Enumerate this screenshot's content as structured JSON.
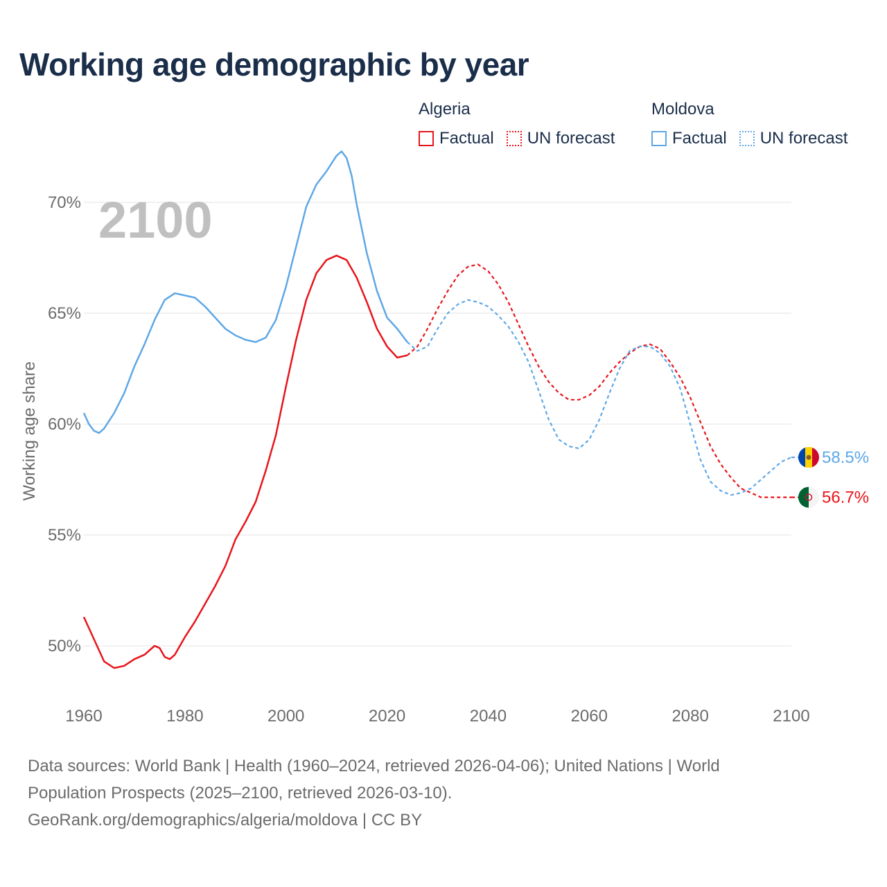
{
  "header": {
    "title": "Working age demographic by year"
  },
  "legend": {
    "groups": [
      {
        "country": "Algeria",
        "factual_label": "Factual",
        "forecast_label": "UN forecast",
        "color": "#e8141b"
      },
      {
        "country": "Moldova",
        "factual_label": "Factual",
        "forecast_label": "UN forecast",
        "color": "#5ea7e6"
      }
    ]
  },
  "chart_data": {
    "type": "line",
    "title": "Working age demographic by year",
    "year_overlay": "2100",
    "xlabel": "",
    "ylabel": "Working age share",
    "xlim": [
      1960,
      2100
    ],
    "ylim": [
      47.5,
      72.5
    ],
    "x_ticks": [
      1960,
      1980,
      2000,
      2020,
      2040,
      2060,
      2080,
      2100
    ],
    "y_ticks": [
      50,
      55,
      60,
      65,
      70
    ],
    "y_tick_labels": [
      "50%",
      "55%",
      "60%",
      "65%",
      "70%"
    ],
    "grid": true,
    "forecast_start": 2025,
    "series": [
      {
        "name": "Algeria",
        "color": "#e8141b",
        "end_label": "56.7%",
        "flag": "algeria-flag",
        "x": [
          1960,
          1962,
          1964,
          1966,
          1968,
          1970,
          1972,
          1974,
          1975,
          1976,
          1977,
          1978,
          1980,
          1982,
          1984,
          1986,
          1988,
          1990,
          1992,
          1994,
          1996,
          1998,
          2000,
          2002,
          2004,
          2006,
          2008,
          2010,
          2012,
          2014,
          2016,
          2018,
          2020,
          2022,
          2024,
          2026,
          2028,
          2030,
          2032,
          2034,
          2036,
          2038,
          2040,
          2042,
          2044,
          2046,
          2048,
          2050,
          2052,
          2054,
          2056,
          2058,
          2060,
          2062,
          2064,
          2066,
          2068,
          2070,
          2072,
          2074,
          2076,
          2078,
          2080,
          2082,
          2084,
          2086,
          2088,
          2090,
          2092,
          2094,
          2096,
          2098,
          2100
        ],
        "values": [
          51.3,
          50.3,
          49.3,
          49.0,
          49.1,
          49.4,
          49.6,
          50.0,
          49.9,
          49.5,
          49.4,
          49.6,
          50.4,
          51.1,
          51.9,
          52.7,
          53.6,
          54.8,
          55.6,
          56.5,
          57.9,
          59.5,
          61.7,
          63.8,
          65.6,
          66.8,
          67.4,
          67.6,
          67.4,
          66.6,
          65.5,
          64.3,
          63.5,
          63.0,
          63.1,
          63.5,
          64.3,
          65.2,
          66.0,
          66.7,
          67.1,
          67.2,
          66.9,
          66.3,
          65.5,
          64.5,
          63.5,
          62.6,
          61.9,
          61.4,
          61.1,
          61.1,
          61.3,
          61.7,
          62.3,
          62.8,
          63.2,
          63.5,
          63.6,
          63.4,
          62.8,
          62.1,
          61.2,
          60.1,
          59.0,
          58.2,
          57.6,
          57.1,
          56.9,
          56.7,
          56.7,
          56.7,
          56.7
        ]
      },
      {
        "name": "Moldova",
        "color": "#5ea7e6",
        "end_label": "58.5%",
        "flag": "moldova-flag",
        "x": [
          1960,
          1961,
          1962,
          1963,
          1964,
          1966,
          1968,
          1970,
          1972,
          1974,
          1976,
          1978,
          1980,
          1982,
          1984,
          1986,
          1988,
          1990,
          1992,
          1994,
          1996,
          1998,
          2000,
          2002,
          2004,
          2006,
          2008,
          2010,
          2011,
          2012,
          2013,
          2014,
          2016,
          2018,
          2020,
          2022,
          2024,
          2026,
          2028,
          2030,
          2032,
          2034,
          2036,
          2038,
          2040,
          2042,
          2044,
          2046,
          2048,
          2050,
          2052,
          2054,
          2056,
          2058,
          2060,
          2062,
          2064,
          2066,
          2068,
          2070,
          2072,
          2074,
          2076,
          2078,
          2080,
          2082,
          2084,
          2086,
          2088,
          2090,
          2092,
          2094,
          2096,
          2098,
          2100
        ],
        "values": [
          60.5,
          60.0,
          59.7,
          59.6,
          59.8,
          60.5,
          61.4,
          62.6,
          63.6,
          64.7,
          65.6,
          65.9,
          65.8,
          65.7,
          65.3,
          64.8,
          64.3,
          64.0,
          63.8,
          63.7,
          63.9,
          64.7,
          66.2,
          68.0,
          69.8,
          70.8,
          71.4,
          72.1,
          72.3,
          72.0,
          71.2,
          69.9,
          67.7,
          66.0,
          64.8,
          64.3,
          63.7,
          63.3,
          63.5,
          64.3,
          65.0,
          65.4,
          65.6,
          65.5,
          65.3,
          64.9,
          64.4,
          63.7,
          62.8,
          61.5,
          60.2,
          59.3,
          59.0,
          58.9,
          59.3,
          60.2,
          61.4,
          62.5,
          63.3,
          63.5,
          63.5,
          63.2,
          62.6,
          61.6,
          60.0,
          58.4,
          57.4,
          57.0,
          56.8,
          56.9,
          57.1,
          57.5,
          57.9,
          58.3,
          58.5
        ]
      }
    ]
  },
  "footer": {
    "line1": "Data sources: World Bank | Health (1960–2024, retrieved 2026-04-06); United Nations | World",
    "line2": "Population Prospects (2025–2100, retrieved 2026-03-10).",
    "line3": "GeoRank.org/demographics/algeria/moldova | CC BY"
  }
}
